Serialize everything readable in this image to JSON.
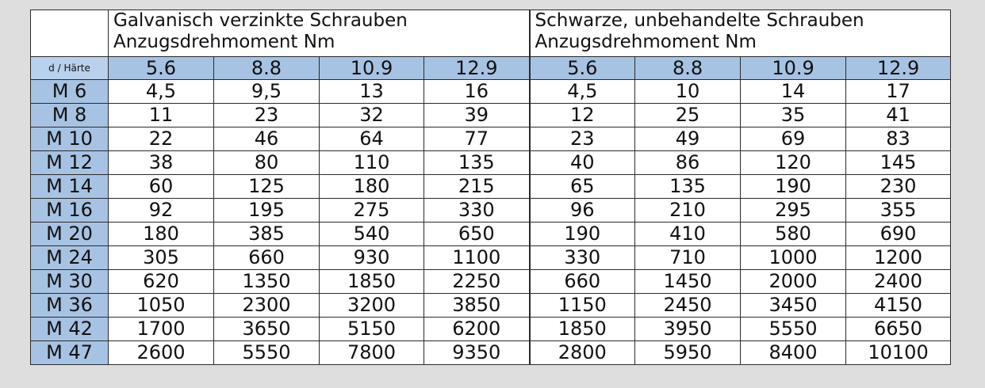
{
  "table": {
    "groups": [
      {
        "title_line1": "Galvanisch verzinkte Schrauben",
        "title_line2": "Anzugsdrehmoment Nm"
      },
      {
        "title_line1": "Schwarze, unbehandelte Schrauben",
        "title_line2": "Anzugsdrehmoment Nm"
      }
    ],
    "corner_label": "d / Härte",
    "grades": [
      "5.6",
      "8.8",
      "10.9",
      "12.9",
      "5.6",
      "8.8",
      "10.9",
      "12.9"
    ],
    "rows": [
      {
        "size": "M 6",
        "values": [
          "4,5",
          "9,5",
          "13",
          "16",
          "4,5",
          "10",
          "14",
          "17"
        ]
      },
      {
        "size": "M 8",
        "values": [
          "11",
          "23",
          "32",
          "39",
          "12",
          "25",
          "35",
          "41"
        ]
      },
      {
        "size": "M 10",
        "values": [
          "22",
          "46",
          "64",
          "77",
          "23",
          "49",
          "69",
          "83"
        ]
      },
      {
        "size": "M 12",
        "values": [
          "38",
          "80",
          "110",
          "135",
          "40",
          "86",
          "120",
          "145"
        ]
      },
      {
        "size": "M 14",
        "values": [
          "60",
          "125",
          "180",
          "215",
          "65",
          "135",
          "190",
          "230"
        ]
      },
      {
        "size": "M 16",
        "values": [
          "92",
          "195",
          "275",
          "330",
          "96",
          "210",
          "295",
          "355"
        ]
      },
      {
        "size": "M 20",
        "values": [
          "180",
          "385",
          "540",
          "650",
          "190",
          "410",
          "580",
          "690"
        ]
      },
      {
        "size": "M 24",
        "values": [
          "305",
          "660",
          "930",
          "1100",
          "330",
          "710",
          "1000",
          "1200"
        ]
      },
      {
        "size": "M 30",
        "values": [
          "620",
          "1350",
          "1850",
          "2250",
          "660",
          "1450",
          "2000",
          "2400"
        ]
      },
      {
        "size": "M 36",
        "values": [
          "1050",
          "2300",
          "3200",
          "3850",
          "1150",
          "2450",
          "3450",
          "4150"
        ]
      },
      {
        "size": "M 42",
        "values": [
          "1700",
          "3650",
          "5150",
          "6200",
          "1850",
          "3950",
          "5550",
          "6650"
        ]
      },
      {
        "size": "M 47",
        "values": [
          "2600",
          "5550",
          "7800",
          "9350",
          "2800",
          "5950",
          "8400",
          "10100"
        ]
      }
    ]
  },
  "colors": {
    "page_background": "#dedede",
    "header_blue": "#a7c3e3",
    "corner_blue": "#b9d1ec",
    "cell_background": "#ffffff",
    "border": "#2a2a2a"
  }
}
